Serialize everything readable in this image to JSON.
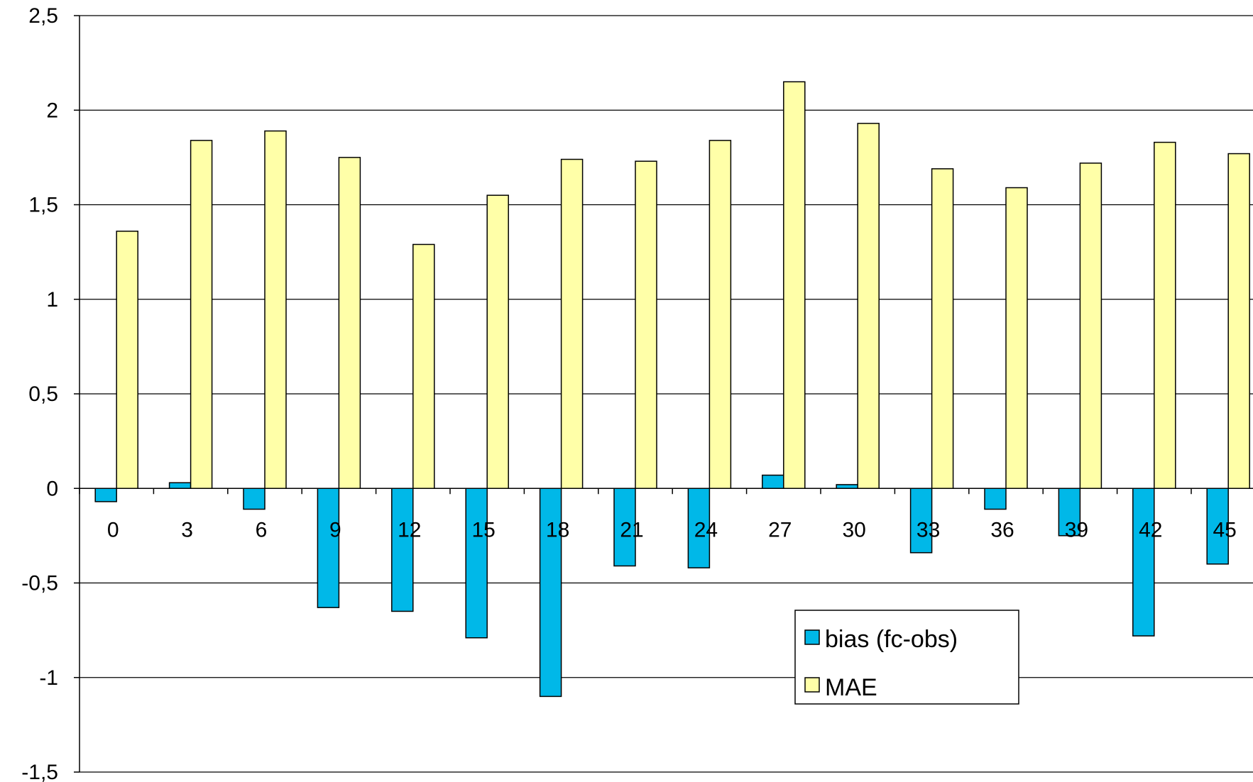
{
  "chart_data": {
    "type": "bar",
    "title": "",
    "xlabel": "",
    "ylabel": "",
    "categories": [
      "0",
      "3",
      "6",
      "9",
      "12",
      "15",
      "18",
      "21",
      "24",
      "27",
      "30",
      "33",
      "36",
      "39",
      "42",
      "45"
    ],
    "series": [
      {
        "name": "bias (fc-obs)",
        "color": "#00b8e8",
        "values": [
          -0.07,
          0.03,
          -0.11,
          -0.63,
          -0.65,
          -0.79,
          -1.1,
          -0.41,
          -0.42,
          0.07,
          0.02,
          -0.34,
          -0.11,
          -0.25,
          -0.78,
          -0.4
        ]
      },
      {
        "name": "MAE",
        "color": "#ffffa8",
        "values": [
          1.36,
          1.84,
          1.89,
          1.75,
          1.29,
          1.55,
          1.74,
          1.73,
          1.84,
          2.15,
          1.93,
          1.69,
          1.59,
          1.72,
          1.83,
          1.77
        ]
      }
    ],
    "ylim": [
      -1.5,
      2.5
    ],
    "yticks": [
      2.5,
      2,
      1.5,
      1,
      0.5,
      0,
      -0.5,
      -1,
      -1.5
    ],
    "ytick_labels": [
      "2,5",
      "2",
      "1,5",
      "1",
      "0,5",
      "0",
      "-0,5",
      "-1",
      "-1,5"
    ],
    "grid": true,
    "legend_position": "bottom-right"
  }
}
